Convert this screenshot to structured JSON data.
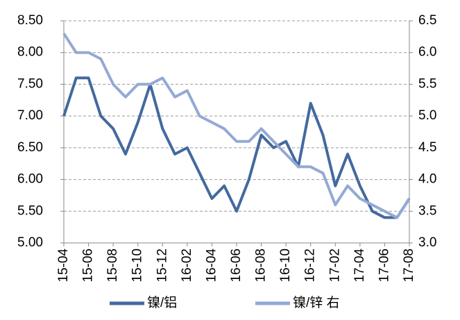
{
  "chart_data": {
    "type": "line",
    "categories": [
      "15-04",
      null,
      "15-06",
      null,
      "15-08",
      null,
      "15-10",
      null,
      "15-12",
      null,
      "16-02",
      null,
      "16-04",
      null,
      "16-06",
      null,
      "16-08",
      null,
      "16-10",
      null,
      "16-12",
      null,
      "17-02",
      null,
      "17-04",
      null,
      "17-06",
      null,
      "17-08"
    ],
    "series": [
      {
        "name": "镍/铝",
        "color": "#44699f",
        "values": [
          7.0,
          7.6,
          7.6,
          7.0,
          6.8,
          6.4,
          6.9,
          7.5,
          6.8,
          6.4,
          6.5,
          6.1,
          5.7,
          5.9,
          5.5,
          6.0,
          6.7,
          6.5,
          6.6,
          6.2,
          7.2,
          6.7,
          5.9,
          6.4,
          5.9,
          5.5,
          5.4,
          5.4,
          5.7
        ]
      },
      {
        "name": "镍/锌 右",
        "color": "#94a9d4",
        "axis": "y2",
        "values": [
          6.3,
          6.0,
          6.0,
          5.9,
          5.5,
          5.3,
          5.5,
          5.5,
          5.6,
          5.3,
          5.4,
          5.0,
          4.9,
          4.8,
          4.6,
          4.6,
          4.8,
          4.6,
          4.4,
          4.2,
          4.2,
          4.1,
          3.6,
          3.9,
          3.7,
          3.6,
          3.5,
          3.4,
          3.7
        ]
      }
    ],
    "ylim": [
      5,
      8.5
    ],
    "yticks": [
      {
        "value": 5,
        "label": "5.00"
      },
      {
        "value": 5.5,
        "label": "5.50"
      },
      {
        "value": 6,
        "label": "6.00"
      },
      {
        "value": 6.5,
        "label": "6.50"
      },
      {
        "value": 7,
        "label": "7.00"
      },
      {
        "value": 7.5,
        "label": "7.50"
      },
      {
        "value": 8,
        "label": "8.00"
      },
      {
        "value": 8.5,
        "label": "8.50"
      }
    ],
    "y2lim": [
      3,
      6.5
    ],
    "y2ticks": [
      {
        "value": 3,
        "label": "3.0"
      },
      {
        "value": 3.5,
        "label": "3.5"
      },
      {
        "value": 4,
        "label": "4.0"
      },
      {
        "value": 4.5,
        "label": "4.5"
      },
      {
        "value": 5,
        "label": "5.0"
      },
      {
        "value": 5.5,
        "label": "5.5"
      },
      {
        "value": 6,
        "label": "6.0"
      },
      {
        "value": 6.5,
        "label": "6.5"
      }
    ],
    "grid": true,
    "legend": "bottom"
  }
}
